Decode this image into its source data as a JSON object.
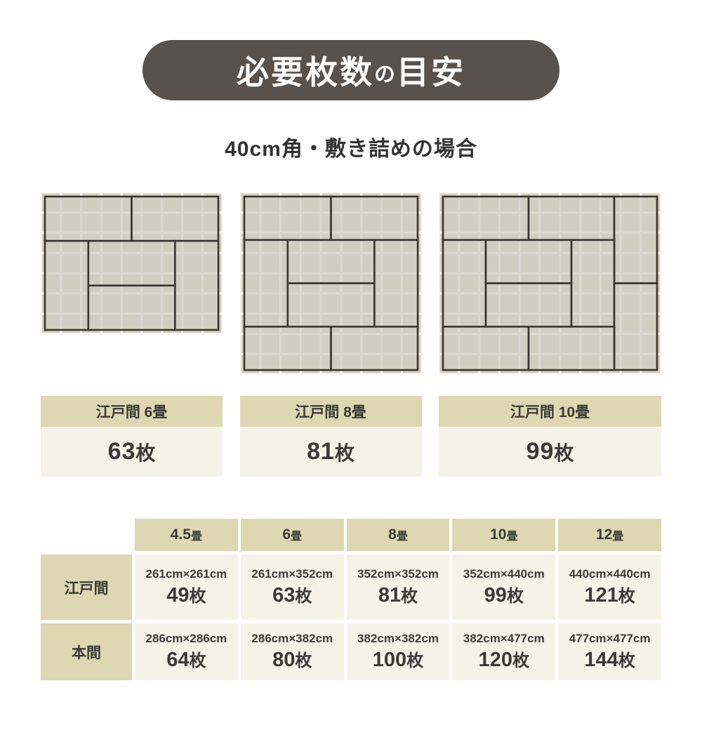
{
  "colors": {
    "pill_bg": "#59514B",
    "title_text": "#FFFFFF",
    "text": "#3A3A37",
    "band_bg": "#DDD7B2",
    "cell_bg": "#F5F3E8",
    "grid_bg": "#D8D1BC",
    "grid_line": "#F9F7F0",
    "mat_fill": "#CFCCC3",
    "mat_border": "#39352E"
  },
  "header": {
    "title_parts": [
      {
        "text": "必要枚数",
        "size": "large"
      },
      {
        "text": "の",
        "size": "small"
      },
      {
        "text": "目安",
        "size": "large"
      }
    ],
    "subtitle": "40cm角・敷き詰めの場合"
  },
  "diagrams": [
    {
      "label": "江戸間 6畳",
      "count": "63枚",
      "cols": 9,
      "rows": 7,
      "mats": [
        [
          0,
          0,
          4.5,
          2.33
        ],
        [
          4.5,
          0,
          4.5,
          2.33
        ],
        [
          0,
          2.33,
          2.25,
          4.67
        ],
        [
          2.25,
          2.33,
          4.5,
          2.34
        ],
        [
          2.25,
          4.67,
          4.5,
          2.33
        ],
        [
          6.75,
          2.33,
          2.25,
          4.67
        ]
      ]
    },
    {
      "label": "江戸間 8畳",
      "count": "81枚",
      "cols": 9,
      "rows": 9,
      "mats": [
        [
          0,
          0,
          4.5,
          2.25
        ],
        [
          4.5,
          0,
          4.5,
          2.25
        ],
        [
          0,
          2.25,
          2.25,
          4.5
        ],
        [
          2.25,
          2.25,
          4.5,
          2.25
        ],
        [
          2.25,
          4.5,
          4.5,
          2.25
        ],
        [
          6.75,
          2.25,
          2.25,
          4.5
        ],
        [
          0,
          6.75,
          4.5,
          2.25
        ],
        [
          4.5,
          6.75,
          4.5,
          2.25
        ]
      ]
    },
    {
      "label": "江戸間 10畳",
      "count": "99枚",
      "cols": 11,
      "rows": 9,
      "mats": [
        [
          0,
          0,
          4.4,
          2.25
        ],
        [
          4.4,
          0,
          4.4,
          2.25
        ],
        [
          8.8,
          0,
          2.2,
          4.5
        ],
        [
          0,
          2.25,
          2.2,
          4.5
        ],
        [
          2.2,
          2.25,
          4.4,
          2.25
        ],
        [
          2.2,
          4.5,
          4.4,
          2.25
        ],
        [
          6.6,
          2.25,
          2.2,
          4.5
        ],
        [
          8.8,
          4.5,
          2.2,
          4.5
        ],
        [
          0,
          6.75,
          4.4,
          2.25
        ],
        [
          4.4,
          6.75,
          4.4,
          2.25
        ]
      ]
    }
  ],
  "table": {
    "col_headers": [
      "4.5畳",
      "6畳",
      "8畳",
      "10畳",
      "12畳"
    ],
    "rows": [
      {
        "label": "江戸間",
        "cells": [
          {
            "size": "261cm×261cm",
            "count": "49枚"
          },
          {
            "size": "261cm×352cm",
            "count": "63枚"
          },
          {
            "size": "352cm×352cm",
            "count": "81枚"
          },
          {
            "size": "352cm×440cm",
            "count": "99枚"
          },
          {
            "size": "440cm×440cm",
            "count": "121枚"
          }
        ]
      },
      {
        "label": "本間",
        "cells": [
          {
            "size": "286cm×286cm",
            "count": "64枚"
          },
          {
            "size": "286cm×382cm",
            "count": "80枚"
          },
          {
            "size": "382cm×382cm",
            "count": "100枚"
          },
          {
            "size": "382cm×477cm",
            "count": "120枚"
          },
          {
            "size": "477cm×477cm",
            "count": "144枚"
          }
        ]
      }
    ]
  }
}
